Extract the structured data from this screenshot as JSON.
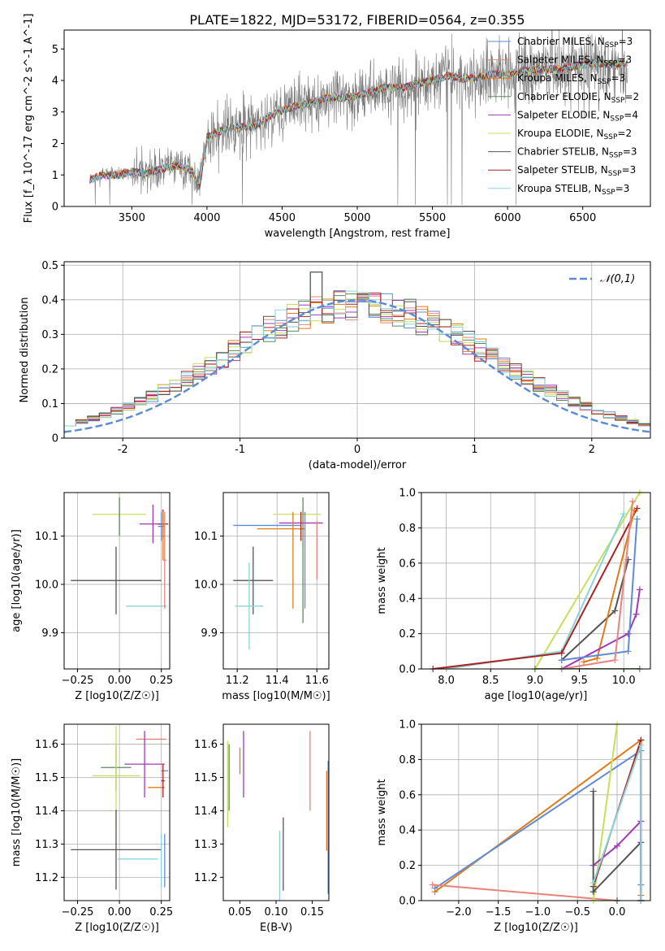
{
  "title": "PLATE=1822, MJD=53172, FIBERID=0564, z=0.355",
  "colors": {
    "chabrier_miles": "#5f8bd6",
    "salpeter_miles": "#e8837b",
    "kroupa_miles": "#e07b1a",
    "chabrier_elodie": "#5a8a5a",
    "salpeter_elodie": "#a338b8",
    "kroupa_elodie": "#c7e05a",
    "chabrier_stelib": "#555555",
    "salpeter_stelib": "#b01f1f",
    "kroupa_stelib": "#86d6db",
    "gaussian": "#5b8ad6",
    "data_grey": "#7a7a7a"
  },
  "chart_data": [
    {
      "id": "spectrum",
      "type": "line",
      "title": "PLATE=1822, MJD=53172, FIBERID=0564, z=0.355",
      "xlabel": "wavelength [Angstrom, rest frame]",
      "ylabel": "Flux [f_λ 10^-17 erg cm^-2 s^-1 A^-1]",
      "xlim": [
        3050,
        6950
      ],
      "ylim": [
        0,
        5.6
      ],
      "xticks": [
        3500,
        4000,
        4500,
        5000,
        5500,
        6000,
        6500
      ],
      "yticks": [
        0,
        1,
        2,
        3,
        4,
        5
      ],
      "grid": false,
      "legend_position": "top-right",
      "legend": [
        "Chabrier MILES, N_SSP=3",
        "Salpeter MILES, N_SSP=3",
        "Kroupa MILES, N_SSP=3",
        "Chabrier ELODIE, N_SSP=2",
        "Salpeter ELODIE, N_SSP=4",
        "Kroupa ELODIE, N_SSP=2",
        "Chabrier STELIB, N_SSP=3",
        "Salpeter STELIB, N_SSP=3",
        "Kroupa STELIB, N_SSP=3"
      ],
      "model_points": {
        "x": [
          3220,
          3300,
          3400,
          3500,
          3600,
          3700,
          3800,
          3900,
          3950,
          4000,
          4100,
          4200,
          4300,
          4400,
          4500,
          4600,
          4700,
          4800,
          4900,
          5000,
          5100,
          5200,
          5300,
          5400,
          5500,
          5600,
          5700,
          5800,
          5900,
          6000,
          6100,
          6200,
          6300,
          6400,
          6500,
          6600,
          6700,
          6800
        ],
        "y": [
          0.85,
          1.0,
          1.0,
          1.1,
          1.05,
          1.2,
          1.3,
          1.15,
          0.6,
          2.2,
          2.4,
          2.55,
          2.5,
          2.8,
          3.05,
          3.2,
          3.3,
          3.45,
          3.45,
          3.5,
          3.65,
          3.8,
          3.75,
          3.9,
          4.0,
          4.15,
          4.05,
          4.1,
          4.2,
          4.2,
          4.3,
          4.35,
          4.35,
          4.4,
          4.5,
          4.55,
          4.5,
          4.55
        ]
      },
      "data_noise_amplitude": [
        0.2,
        0.6,
        0.9,
        1.0,
        1.2
      ]
    },
    {
      "id": "residuals",
      "type": "histogram",
      "xlabel": "(data-model)/error",
      "ylabel": "Normed distribution",
      "xlim": [
        -2.5,
        2.5
      ],
      "ylim": [
        0,
        0.51
      ],
      "xticks": [
        -2,
        -1,
        0,
        1,
        2
      ],
      "yticks": [
        0,
        0.1,
        0.2,
        0.3,
        0.4,
        0.5
      ],
      "grid": true,
      "legend_position": "top-right",
      "legend": [
        "𝒩(0,1)"
      ],
      "bin_width": 0.1,
      "bin_start": -2.5
    },
    {
      "id": "age-vs-Z",
      "type": "scatter",
      "xlabel": "Z [log10(Z/Z☉)]",
      "ylabel": "age [log10(age/yr)]",
      "xlim": [
        -0.33,
        0.3
      ],
      "ylim": [
        9.825,
        10.19
      ],
      "xticks": [
        -0.25,
        0,
        0.25
      ],
      "xticklabels": [
        "−0.25",
        "0.00",
        "0.25"
      ],
      "yticks": [
        9.9,
        10.0,
        10.1
      ],
      "yticklabels": [
        "9.9",
        "10.0",
        "10.1"
      ],
      "grid": true,
      "points": [
        {
          "s": "kroupa_elodie",
          "x": 0.0,
          "y": 10.145,
          "xerr": 0.16,
          "yerr": 0.04
        },
        {
          "s": "chabrier_elodie",
          "x": 0.0,
          "y": 10.14,
          "xerr": 0.0,
          "yerr": 0.04
        },
        {
          "s": "chabrier_stelib",
          "x": -0.02,
          "y": 10.008,
          "xerr": 0.27,
          "yerr": 0.07
        },
        {
          "s": "kroupa_stelib",
          "x": 0.16,
          "y": 9.955,
          "xerr": 0.12,
          "yerr": 0.0
        },
        {
          "s": "salpeter_elodie",
          "x": 0.2,
          "y": 10.125,
          "xerr": 0.08,
          "yerr": 0.04
        },
        {
          "s": "salpeter_stelib",
          "x": 0.26,
          "y": 10.125,
          "xerr": 0.03,
          "yerr": 0.03
        },
        {
          "s": "chabrier_miles",
          "x": 0.25,
          "y": 10.12,
          "xerr": 0.02,
          "yerr": 0.03
        },
        {
          "s": "salpeter_miles",
          "x": 0.27,
          "y": 10.05,
          "xerr": 0.01,
          "yerr": 0.1
        },
        {
          "s": "kroupa_miles",
          "x": 0.26,
          "y": 10.1,
          "xerr": 0.01,
          "yerr": 0.05
        }
      ]
    },
    {
      "id": "age-vs-mass",
      "type": "scatter",
      "xlabel": "mass [log10(M/M☉)]",
      "ylabel": "",
      "xlim": [
        11.13,
        11.66
      ],
      "ylim": [
        9.825,
        10.19
      ],
      "xticks": [
        11.2,
        11.4,
        11.6
      ],
      "xticklabels": [
        "11.2",
        "11.4",
        "11.6"
      ],
      "yticks": [
        9.9,
        10.0,
        10.1
      ],
      "yticklabels": [
        "9.9",
        "10.0",
        "10.1"
      ],
      "grid": true,
      "points": [
        {
          "s": "chabrier_miles",
          "x": 11.35,
          "y": 10.122,
          "xerr": 0.17,
          "yerr": 0.0
        },
        {
          "s": "kroupa_miles",
          "x": 11.42,
          "y": 10.115,
          "xerr": 0.12,
          "yerr": 0.0
        },
        {
          "s": "kroupa_elodie",
          "x": 11.5,
          "y": 10.145,
          "xerr": 0.12,
          "yerr": 0.0
        },
        {
          "s": "salpeter_elodie",
          "x": 11.52,
          "y": 10.127,
          "xerr": 0.11,
          "yerr": 0.0
        },
        {
          "s": "chabrier_stelib",
          "x": 11.28,
          "y": 10.008,
          "xerr": 0.1,
          "yerr": 0.07
        },
        {
          "s": "kroupa_stelib",
          "x": 11.26,
          "y": 9.955,
          "xerr": 0.07,
          "yerr": 0.09
        },
        {
          "s": "kroupa_miles",
          "x": 11.48,
          "y": 10.05,
          "xerr": 0.0,
          "yerr": 0.1
        },
        {
          "s": "chabrier_elodie",
          "x": 11.53,
          "y": 10.05,
          "xerr": 0.0,
          "yerr": 0.13
        },
        {
          "s": "chabrier_miles",
          "x": 11.54,
          "y": 10.05,
          "xerr": 0.0,
          "yerr": 0.1
        },
        {
          "s": "salpeter_stelib",
          "x": 11.52,
          "y": 10.12,
          "xerr": 0.0,
          "yerr": 0.03
        },
        {
          "s": "salpeter_miles",
          "x": 11.6,
          "y": 10.07,
          "xerr": 0.0,
          "yerr": 0.06
        }
      ]
    },
    {
      "id": "mass-weight-vs-age",
      "type": "line",
      "xlabel": "age [log10(age/yr)]",
      "ylabel": "mass weight",
      "xlim": [
        7.72,
        10.3
      ],
      "ylim": [
        0,
        1.0
      ],
      "xticks": [
        8.0,
        8.5,
        9.0,
        9.5,
        10.0
      ],
      "xticklabels": [
        "8.0",
        "8.5",
        "9.0",
        "9.5",
        "10.0"
      ],
      "yticks": [
        0,
        0.2,
        0.4,
        0.6,
        0.8,
        1.0
      ],
      "yticklabels": [
        "0.0",
        "0.2",
        "0.4",
        "0.6",
        "0.8",
        "1.0"
      ],
      "grid": true,
      "series": [
        {
          "s": "kroupa_elodie",
          "x": [
            9.0,
            10.18
          ],
          "y": [
            0.0,
            1.0
          ]
        },
        {
          "s": "kroupa_stelib",
          "x": [
            8.0,
            9.3,
            10.0
          ],
          "y": [
            0.0,
            0.1,
            0.88
          ]
        },
        {
          "s": "salpeter_stelib",
          "x": [
            7.85,
            9.3,
            10.15
          ],
          "y": [
            0.0,
            0.09,
            0.91
          ]
        },
        {
          "s": "chabrier_stelib",
          "x": [
            9.3,
            9.9,
            10.05
          ],
          "y": [
            0.05,
            0.33,
            0.62
          ]
        },
        {
          "s": "kroupa_miles",
          "x": [
            9.55,
            9.7,
            10.12
          ],
          "y": [
            0.04,
            0.06,
            0.9
          ]
        },
        {
          "s": "salpeter_elodie",
          "x": [
            9.3,
            10.05,
            10.14,
            10.18
          ],
          "y": [
            0.0,
            0.2,
            0.31,
            0.45
          ]
        },
        {
          "s": "chabrier_miles",
          "x": [
            9.3,
            10.05,
            10.15
          ],
          "y": [
            0.05,
            0.1,
            0.85
          ]
        },
        {
          "s": "salpeter_miles",
          "x": [
            9.3,
            9.9,
            10.1
          ],
          "y": [
            0.0,
            0.05,
            0.95
          ]
        },
        {
          "s": "chabrier_elodie",
          "x": [
            9.0,
            10.18
          ],
          "y": [
            0.0,
            0.0
          ]
        }
      ]
    },
    {
      "id": "mass-vs-Z",
      "type": "scatter",
      "xlabel": "Z [log10(Z/Z☉)]",
      "ylabel": "mass [log10(M/M☉)]",
      "xlim": [
        -0.33,
        0.3
      ],
      "ylim": [
        11.13,
        11.66
      ],
      "xticks": [
        -0.25,
        0,
        0.25
      ],
      "xticklabels": [
        "−0.25",
        "0.00",
        "0.25"
      ],
      "yticks": [
        11.2,
        11.3,
        11.4,
        11.5,
        11.6
      ],
      "yticklabels": [
        "11.2",
        "11.3",
        "11.4",
        "11.5",
        "11.6"
      ],
      "grid": true,
      "points": [
        {
          "s": "salpeter_miles",
          "x": 0.19,
          "y": 11.615,
          "xerr": 0.09,
          "yerr": 0.0
        },
        {
          "s": "chabrier_elodie",
          "x": -0.02,
          "y": 11.53,
          "xerr": 0.09,
          "yerr": 0.07
        },
        {
          "s": "kroupa_elodie",
          "x": -0.02,
          "y": 11.505,
          "xerr": 0.14,
          "yerr": 0.15
        },
        {
          "s": "chabrier_stelib",
          "x": -0.02,
          "y": 11.283,
          "xerr": 0.27,
          "yerr": 0.12
        },
        {
          "s": "kroupa_stelib",
          "x": 0.11,
          "y": 11.255,
          "xerr": 0.12,
          "yerr": 0.0
        },
        {
          "s": "salpeter_elodie",
          "x": 0.15,
          "y": 11.54,
          "xerr": 0.12,
          "yerr": 0.1
        },
        {
          "s": "chabrier_miles",
          "x": 0.27,
          "y": 11.52,
          "xerr": 0.02,
          "yerr": 0.0
        },
        {
          "s": "kroupa_miles",
          "x": 0.22,
          "y": 11.47,
          "xerr": 0.05,
          "yerr": 0.0
        },
        {
          "s": "salpeter_stelib",
          "x": 0.26,
          "y": 11.49,
          "xerr": 0.01,
          "yerr": 0.05
        },
        {
          "s": "chabrier_miles",
          "x": 0.27,
          "y": 11.25,
          "xerr": 0.0,
          "yerr": 0.08
        },
        {
          "s": "kroupa_stelib",
          "x": 0.25,
          "y": 11.25,
          "xerr": 0.0,
          "yerr": 0.08
        }
      ]
    },
    {
      "id": "mass-vs-ebv",
      "type": "scatter",
      "xlabel": "E(B-V)",
      "ylabel": "",
      "xlim": [
        0.027,
        0.173
      ],
      "ylim": [
        11.13,
        11.66
      ],
      "xticks": [
        0.05,
        0.1,
        0.15
      ],
      "xticklabels": [
        "0.05",
        "0.10",
        "0.15"
      ],
      "yticks": [
        11.2,
        11.3,
        11.4,
        11.5,
        11.6
      ],
      "yticklabels": [
        "11.2",
        "11.3",
        "11.4",
        "11.5",
        "11.6"
      ],
      "grid": false,
      "points": [
        {
          "s": "kroupa_elodie",
          "x": 0.033,
          "y": 11.48,
          "xerr": 0.0,
          "yerr": 0.13
        },
        {
          "s": "chabrier_elodie",
          "x": 0.035,
          "y": 11.5,
          "xerr": 0.0,
          "yerr": 0.1
        },
        {
          "s": "kroupa_miles",
          "x": 0.05,
          "y": 11.55,
          "xerr": 0.0,
          "yerr": 0.04
        },
        {
          "s": "salpeter_elodie",
          "x": 0.055,
          "y": 11.54,
          "xerr": 0.0,
          "yerr": 0.1
        },
        {
          "s": "kroupa_stelib",
          "x": 0.105,
          "y": 11.22,
          "xerr": 0.0,
          "yerr": 0.12
        },
        {
          "s": "chabrier_stelib",
          "x": 0.11,
          "y": 11.27,
          "xerr": 0.0,
          "yerr": 0.11
        },
        {
          "s": "salpeter_miles",
          "x": 0.147,
          "y": 11.52,
          "xerr": 0.0,
          "yerr": 0.12
        },
        {
          "s": "kroupa_miles",
          "x": 0.17,
          "y": 11.4,
          "xerr": 0.0,
          "yerr": 0.12
        },
        {
          "s": "chabrier_miles",
          "x": 0.172,
          "y": 11.35,
          "xerr": 0.0,
          "yerr": 0.2
        }
      ]
    },
    {
      "id": "mass-weight-vs-Z",
      "type": "line",
      "xlabel": "Z [log10(Z/Z☉)]",
      "ylabel": "mass weight",
      "xlim": [
        -2.47,
        0.42
      ],
      "ylim": [
        0,
        1.0
      ],
      "xticks": [
        -2.0,
        -1.5,
        -1.0,
        -0.5,
        0.0
      ],
      "xticklabels": [
        "−2.0",
        "−1.5",
        "−1.0",
        "−0.5",
        "0.0"
      ],
      "yticks": [
        0,
        0.2,
        0.4,
        0.6,
        0.8,
        1.0
      ],
      "yticklabels": [
        "0.0",
        "0.2",
        "0.4",
        "0.6",
        "0.8",
        "1.0"
      ],
      "grid": true,
      "series": [
        {
          "s": "kroupa_miles",
          "x": [
            -2.3,
            0.3,
            0.3
          ],
          "y": [
            0.05,
            0.91,
            0.03
          ]
        },
        {
          "s": "chabrier_miles",
          "x": [
            -2.3,
            0.3,
            0.3
          ],
          "y": [
            0.07,
            0.85,
            0.09
          ]
        },
        {
          "s": "salpeter_miles",
          "x": [
            -2.33,
            0.0
          ],
          "y": [
            0.09,
            0.0
          ]
        },
        {
          "s": "kroupa_elodie",
          "x": [
            -0.3,
            0.0
          ],
          "y": [
            0.0,
            1.0
          ]
        },
        {
          "s": "salpeter_stelib",
          "x": [
            -0.3,
            0.3,
            0.3
          ],
          "y": [
            0.08,
            0.91,
            0.0
          ]
        },
        {
          "s": "salpeter_elodie",
          "x": [
            -0.3,
            0.0,
            0.3,
            0.3
          ],
          "y": [
            0.2,
            0.31,
            0.45,
            0.0
          ]
        },
        {
          "s": "chabrier_stelib",
          "x": [
            -0.3,
            -0.3,
            0.3,
            0.3
          ],
          "y": [
            0.62,
            0.05,
            0.33,
            0.0
          ]
        },
        {
          "s": "kroupa_stelib",
          "x": [
            -0.3,
            0.3,
            0.3
          ],
          "y": [
            0.1,
            0.88,
            0.0
          ]
        },
        {
          "s": "chabrier_elodie",
          "x": [
            0.0,
            0.0
          ],
          "y": [
            0.0,
            0.0
          ]
        }
      ]
    }
  ]
}
